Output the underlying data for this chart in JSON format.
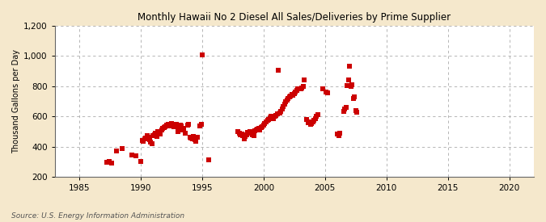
{
  "title": "Monthly Hawaii No 2 Diesel All Sales/Deliveries by Prime Supplier",
  "ylabel": "Thousand Gallons per Day",
  "source": "Source: U.S. Energy Information Administration",
  "background_color": "#f5e8cc",
  "plot_background": "#ffffff",
  "marker_color": "#cc0000",
  "marker_size": 14,
  "xlim": [
    1983,
    2022
  ],
  "ylim": [
    200,
    1200
  ],
  "xticks": [
    1985,
    1990,
    1995,
    2000,
    2005,
    2010,
    2015,
    2020
  ],
  "yticks": [
    200,
    400,
    600,
    800,
    1000,
    1200
  ],
  "data": [
    [
      1987.2,
      295
    ],
    [
      1987.4,
      300
    ],
    [
      1987.6,
      290
    ],
    [
      1988.0,
      370
    ],
    [
      1988.5,
      385
    ],
    [
      1989.3,
      345
    ],
    [
      1989.6,
      340
    ],
    [
      1990.0,
      300
    ],
    [
      1990.1,
      440
    ],
    [
      1990.2,
      435
    ],
    [
      1990.3,
      450
    ],
    [
      1990.4,
      455
    ],
    [
      1990.5,
      470
    ],
    [
      1990.6,
      460
    ],
    [
      1990.7,
      445
    ],
    [
      1990.8,
      430
    ],
    [
      1990.9,
      420
    ],
    [
      1991.0,
      475
    ],
    [
      1991.1,
      480
    ],
    [
      1991.2,
      490
    ],
    [
      1991.3,
      465
    ],
    [
      1991.4,
      500
    ],
    [
      1991.5,
      495
    ],
    [
      1991.6,
      485
    ],
    [
      1991.7,
      510
    ],
    [
      1991.8,
      520
    ],
    [
      1991.9,
      525
    ],
    [
      1992.0,
      530
    ],
    [
      1992.1,
      540
    ],
    [
      1992.2,
      545
    ],
    [
      1992.3,
      535
    ],
    [
      1992.4,
      550
    ],
    [
      1992.5,
      555
    ],
    [
      1992.6,
      545
    ],
    [
      1992.7,
      530
    ],
    [
      1992.8,
      540
    ],
    [
      1992.9,
      545
    ],
    [
      1993.0,
      500
    ],
    [
      1993.1,
      510
    ],
    [
      1993.2,
      540
    ],
    [
      1993.3,
      535
    ],
    [
      1993.4,
      520
    ],
    [
      1993.5,
      510
    ],
    [
      1993.6,
      490
    ],
    [
      1993.8,
      540
    ],
    [
      1993.9,
      545
    ],
    [
      1994.0,
      460
    ],
    [
      1994.1,
      455
    ],
    [
      1994.2,
      450
    ],
    [
      1994.3,
      465
    ],
    [
      1994.4,
      445
    ],
    [
      1994.5,
      435
    ],
    [
      1994.6,
      460
    ],
    [
      1994.8,
      535
    ],
    [
      1994.9,
      545
    ],
    [
      1995.0,
      1005
    ],
    [
      1995.5,
      310
    ],
    [
      1997.9,
      500
    ],
    [
      1998.0,
      490
    ],
    [
      1998.1,
      480
    ],
    [
      1998.2,
      485
    ],
    [
      1998.3,
      470
    ],
    [
      1998.4,
      450
    ],
    [
      1998.5,
      465
    ],
    [
      1998.6,
      480
    ],
    [
      1998.7,
      495
    ],
    [
      1998.8,
      490
    ],
    [
      1998.9,
      500
    ],
    [
      1999.0,
      490
    ],
    [
      1999.1,
      480
    ],
    [
      1999.2,
      475
    ],
    [
      1999.3,
      505
    ],
    [
      1999.4,
      510
    ],
    [
      1999.5,
      515
    ],
    [
      1999.6,
      520
    ],
    [
      1999.7,
      510
    ],
    [
      1999.8,
      525
    ],
    [
      1999.9,
      530
    ],
    [
      2000.0,
      540
    ],
    [
      2000.1,
      555
    ],
    [
      2000.2,
      565
    ],
    [
      2000.3,
      575
    ],
    [
      2000.4,
      580
    ],
    [
      2000.5,
      590
    ],
    [
      2000.6,
      600
    ],
    [
      2000.7,
      595
    ],
    [
      2000.8,
      585
    ],
    [
      2000.9,
      600
    ],
    [
      2001.0,
      605
    ],
    [
      2001.1,
      615
    ],
    [
      2001.2,
      905
    ],
    [
      2001.3,
      620
    ],
    [
      2001.4,
      635
    ],
    [
      2001.5,
      650
    ],
    [
      2001.6,
      665
    ],
    [
      2001.7,
      680
    ],
    [
      2001.8,
      695
    ],
    [
      2001.9,
      710
    ],
    [
      2002.0,
      720
    ],
    [
      2002.1,
      730
    ],
    [
      2002.2,
      735
    ],
    [
      2002.3,
      745
    ],
    [
      2002.4,
      740
    ],
    [
      2002.5,
      750
    ],
    [
      2002.6,
      760
    ],
    [
      2002.7,
      770
    ],
    [
      2002.8,
      780
    ],
    [
      2003.0,
      780
    ],
    [
      2003.1,
      790
    ],
    [
      2003.2,
      800
    ],
    [
      2003.3,
      840
    ],
    [
      2003.5,
      580
    ],
    [
      2003.6,
      560
    ],
    [
      2003.7,
      565
    ],
    [
      2003.8,
      545
    ],
    [
      2003.9,
      555
    ],
    [
      2004.0,
      565
    ],
    [
      2004.1,
      575
    ],
    [
      2004.2,
      585
    ],
    [
      2004.3,
      600
    ],
    [
      2004.4,
      610
    ],
    [
      2004.8,
      785
    ],
    [
      2005.1,
      760
    ],
    [
      2005.2,
      755
    ],
    [
      2006.0,
      485
    ],
    [
      2006.1,
      475
    ],
    [
      2006.2,
      490
    ],
    [
      2006.5,
      635
    ],
    [
      2006.6,
      650
    ],
    [
      2006.7,
      660
    ],
    [
      2006.8,
      805
    ],
    [
      2006.9,
      840
    ],
    [
      2007.0,
      930
    ],
    [
      2007.1,
      800
    ],
    [
      2007.2,
      810
    ],
    [
      2007.3,
      720
    ],
    [
      2007.4,
      730
    ],
    [
      2007.5,
      640
    ],
    [
      2007.6,
      630
    ]
  ]
}
